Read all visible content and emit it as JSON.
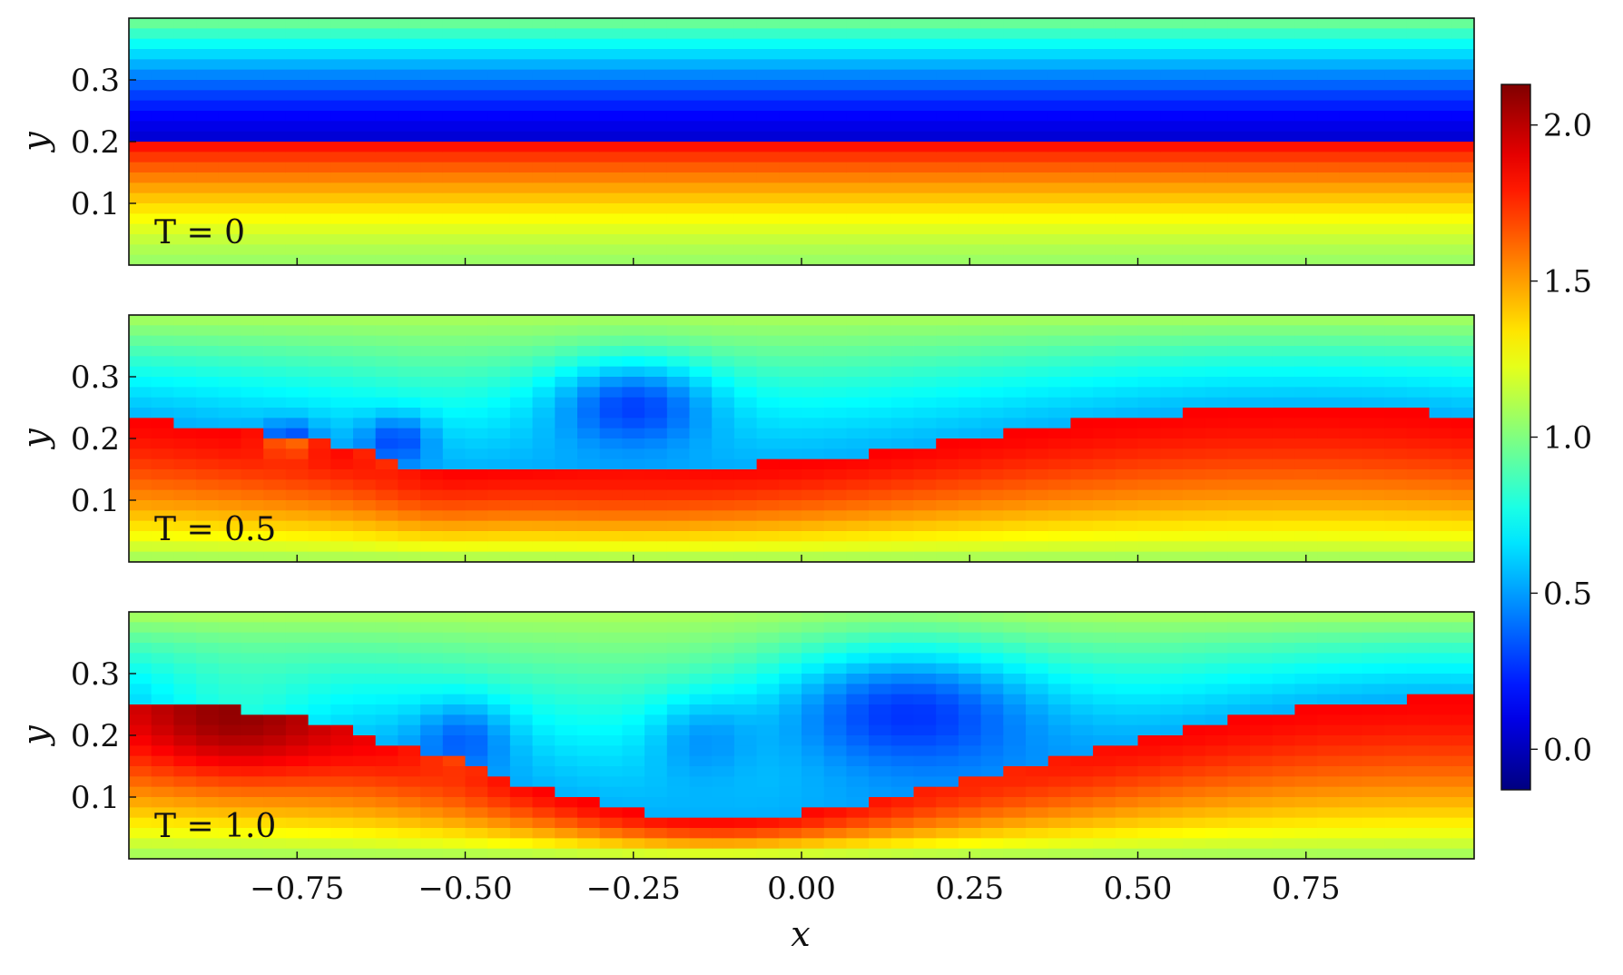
{
  "chart_data": {
    "type": "heatmap",
    "colormap": "jet",
    "grid": false,
    "x_range": [
      -1.0,
      1.0
    ],
    "y_range": [
      0.0,
      0.4
    ],
    "x_ticks": [
      -0.75,
      -0.5,
      -0.25,
      0.0,
      0.25,
      0.5,
      0.75
    ],
    "x_tick_labels": [
      "−0.75",
      "−0.50",
      "−0.25",
      "0.00",
      "0.25",
      "0.50",
      "0.75"
    ],
    "y_ticks": [
      0.1,
      0.2,
      0.3
    ],
    "y_tick_labels": [
      "0.1",
      "0.2",
      "0.3"
    ],
    "xlabel": "x",
    "ylabel": "y",
    "colorbar": {
      "range": [
        -0.13,
        2.13
      ],
      "ticks": [
        0.0,
        0.5,
        1.0,
        1.5,
        2.0
      ],
      "tick_labels": [
        "0.0",
        "0.5",
        "1.0",
        "1.5",
        "2.0"
      ]
    },
    "panels": [
      {
        "annotation": "T = 0",
        "time": 0
      },
      {
        "annotation": "T = 0.5",
        "time": 0.5
      },
      {
        "annotation": "T = 1.0",
        "time": 1.0
      }
    ]
  }
}
